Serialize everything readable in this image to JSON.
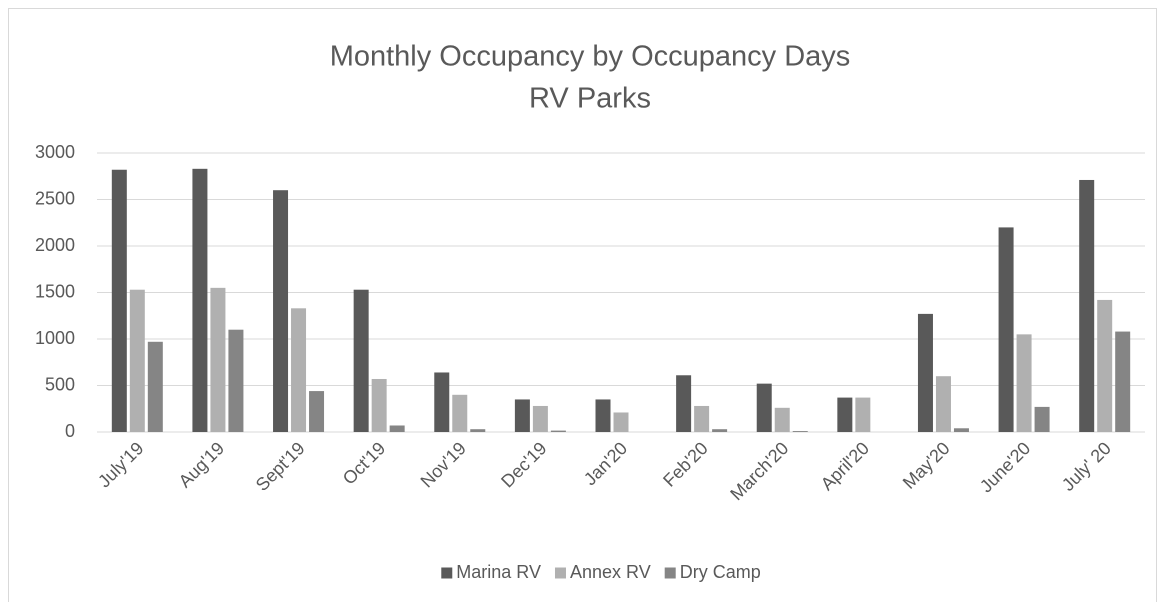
{
  "chart_data": {
    "type": "bar",
    "title": "Monthly Occupancy by Occupancy Days",
    "subtitle": "RV Parks",
    "categories": [
      "July'19",
      "Aug'19",
      "Sept'19",
      "Oct'19",
      "Nov'19",
      "Dec'19",
      "Jan'20",
      "Feb'20",
      "March'20",
      "April'20",
      "May'20",
      "June'20",
      "July' 20"
    ],
    "series": [
      {
        "name": "Marina RV",
        "color": "#595959",
        "values": [
          2820,
          2830,
          2600,
          1530,
          640,
          350,
          350,
          610,
          520,
          370,
          1270,
          2200,
          2710
        ]
      },
      {
        "name": "Annex RV",
        "color": "#b0b0b0",
        "values": [
          1530,
          1550,
          1330,
          570,
          400,
          280,
          210,
          280,
          260,
          370,
          600,
          1050,
          1420
        ]
      },
      {
        "name": "Dry Camp",
        "color": "#858585",
        "values": [
          970,
          1100,
          440,
          70,
          30,
          15,
          0,
          30,
          10,
          0,
          40,
          270,
          1080
        ]
      }
    ],
    "ylim": [
      0,
      3000
    ],
    "yticks": [
      0,
      500,
      1000,
      1500,
      2000,
      2500,
      3000
    ],
    "grid": true,
    "legend": "bottom"
  }
}
